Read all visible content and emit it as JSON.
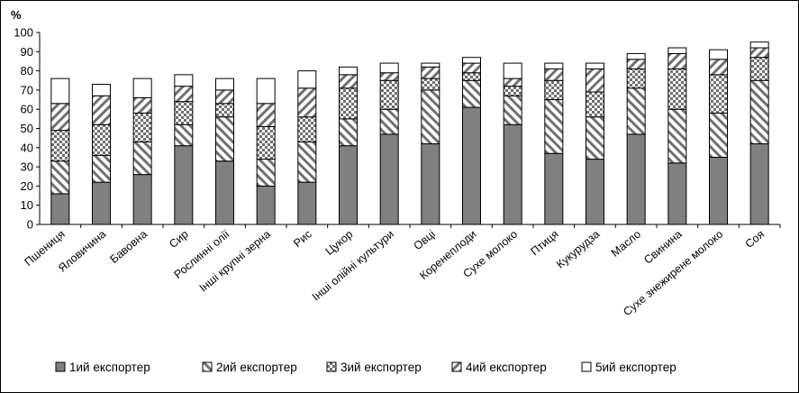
{
  "chart_data": {
    "type": "bar",
    "stacked": true,
    "ylabel": "%",
    "ylim": [
      0,
      100
    ],
    "yticks": [
      0,
      10,
      20,
      30,
      40,
      50,
      60,
      70,
      80,
      90,
      100
    ],
    "grid": false,
    "legend_position": "bottom",
    "categories": [
      "Пшениця",
      "Яловичина",
      "Бавовна",
      "Сир",
      "Рослинні олії",
      "Інші крупні зерна",
      "Рис",
      "Цукор",
      "Інші олійні культури",
      "Овці",
      "Коренеплоди",
      "Сухе  молоко",
      "Птиця",
      "Кукурудза",
      "Масло",
      "Свинина",
      "Сухе знежирене молоко",
      "Соя"
    ],
    "series": [
      {
        "name": "1ий експортер",
        "pattern": "solid-gray",
        "color": "#808080",
        "values": [
          16,
          22,
          26,
          41,
          33,
          20,
          22,
          41,
          47,
          42,
          61,
          52,
          37,
          34,
          47,
          32,
          35,
          42
        ]
      },
      {
        "name": "2ий експортер",
        "pattern": "diagonal-right",
        "color": "#ffffff",
        "values": [
          17,
          14,
          17,
          11,
          23,
          14,
          21,
          14,
          13,
          28,
          14,
          15,
          28,
          22,
          24,
          28,
          23,
          33
        ]
      },
      {
        "name": "3ий експортер",
        "pattern": "checker",
        "color": "#a0a0a0",
        "values": [
          16,
          16,
          15,
          12,
          7,
          17,
          13,
          16,
          15,
          6,
          4,
          5,
          10,
          13,
          10,
          21,
          20,
          12
        ]
      },
      {
        "name": "4ий експортер",
        "pattern": "diagonal-left",
        "color": "#ffffff",
        "values": [
          14,
          15,
          8,
          8,
          7,
          12,
          15,
          7,
          4,
          6,
          5,
          4,
          6,
          12,
          5,
          8,
          8,
          5
        ]
      },
      {
        "name": "5ий експортер",
        "pattern": "white",
        "color": "#ffffff",
        "values": [
          13,
          6,
          10,
          6,
          6,
          13,
          9,
          4,
          5,
          2,
          3,
          8,
          3,
          3,
          3,
          3,
          5,
          3
        ]
      }
    ]
  }
}
